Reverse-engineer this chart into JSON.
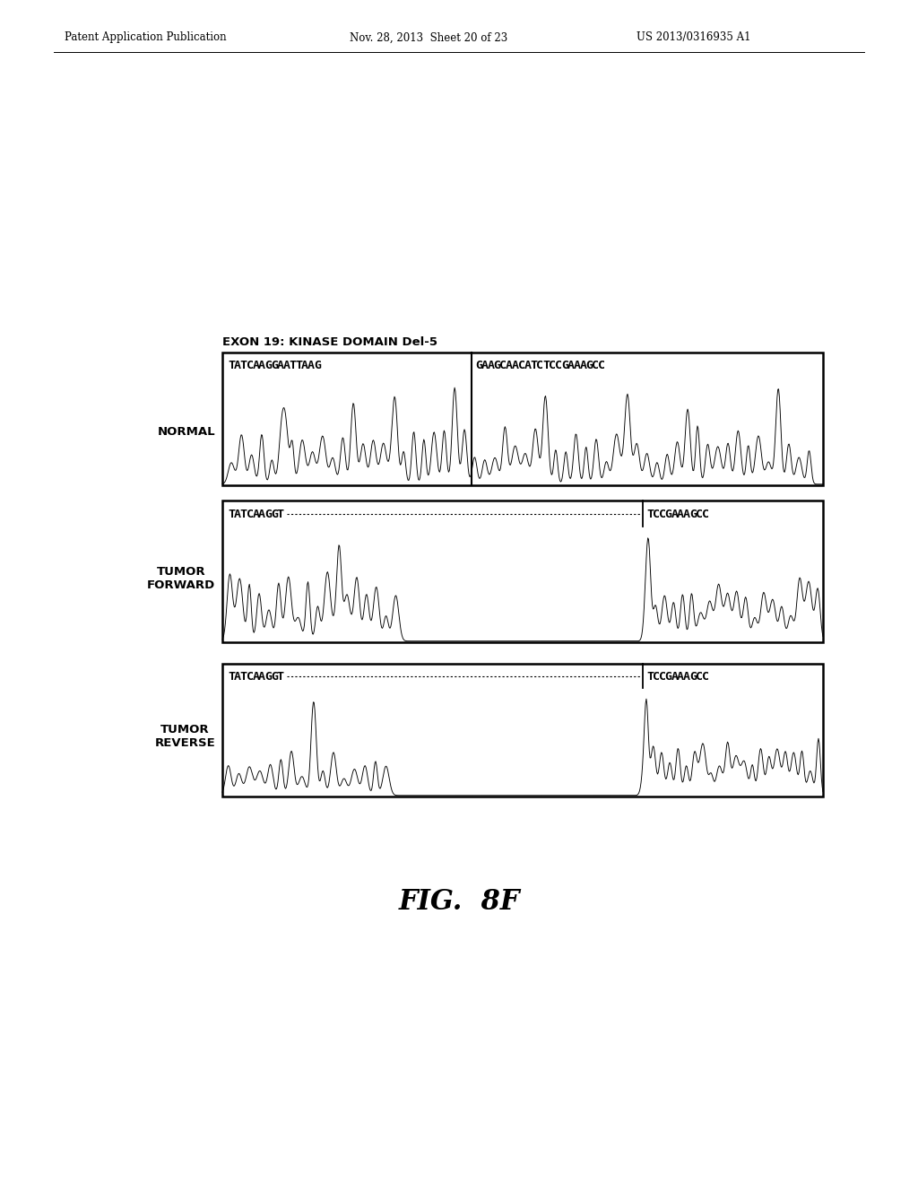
{
  "page_header_left": "Patent Application Publication",
  "page_header_mid": "Nov. 28, 2013  Sheet 20 of 23",
  "page_header_right": "US 2013/0316935 A1",
  "panel_title": "EXON 19: KINASE DOMAIN Del-5",
  "panel1_label": "NORMAL",
  "panel2_label": "TUMOR\nFORWARD",
  "panel3_label": "TUMOR\nREVERSE",
  "panel1_seq": "TATCAAGGAATTAAG GAAGCAACATCTCCGAAAGCC",
  "panel1_seq_left": "TATCAAGGAATTAAG",
  "panel1_seq_right": "GAAGCAACATCTCCGAAAGCC",
  "panel2_seq_left": "TATCAAGGT",
  "panel2_seq_right": "TCCGAAAGCC",
  "panel3_seq_left": "TATCAAGGT",
  "panel3_seq_right": "TCCGAAAGCC",
  "fig_label": "FIG.  8F",
  "bg_color": "#ffffff",
  "line_color": "#000000"
}
